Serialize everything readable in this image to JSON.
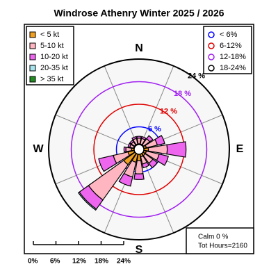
{
  "chart_data": {
    "type": "windrose",
    "title": "Windrose  Athenry Winter 2025 / 2026",
    "categories": [
      "N",
      null,
      null,
      null,
      "E",
      null,
      null,
      null,
      "S",
      null,
      null,
      null,
      "W",
      null,
      null,
      null
    ],
    "series": [
      {
        "name": "< 5  kt",
        "color": "#f0a020",
        "values": [
          1.5,
          1.5,
          1.5,
          2,
          2.5,
          2,
          2,
          2,
          3,
          3.5,
          5,
          3,
          2,
          1.5,
          1.5,
          1.5
        ]
      },
      {
        "name": "5-10 kt",
        "color": "#ffb6c1",
        "values": [
          1.5,
          1.5,
          2,
          3,
          5,
          3.5,
          2.5,
          2,
          3.5,
          4,
          11.5,
          4,
          1.5,
          1,
          1,
          1.5
        ]
      },
      {
        "name": "10-20 kt",
        "color": "#ee66ee",
        "values": [
          0.5,
          0.5,
          1,
          2,
          5,
          2.5,
          1.5,
          1,
          1.5,
          2.5,
          3,
          4,
          0.5,
          0.5,
          0.5,
          0.5
        ]
      },
      {
        "name": "20-35 kt",
        "color": "#a8e4ec",
        "values": [
          0,
          0,
          0,
          0,
          0,
          0,
          0,
          0,
          0,
          0,
          0.3,
          0,
          0,
          0,
          0,
          0
        ]
      },
      {
        "name": "> 35 kt",
        "color": "#228b22",
        "values": [
          0,
          0,
          0,
          0,
          0,
          0,
          0,
          0,
          0,
          0,
          0,
          0,
          0,
          0,
          0,
          0
        ]
      }
    ],
    "rlim": [
      0,
      24
    ],
    "rings": [
      {
        "value": 6,
        "label": "6 %",
        "name": "< 6%",
        "color": "#0000ff"
      },
      {
        "value": 12,
        "label": "12 %",
        "name": "6-12%",
        "color": "#e00000"
      },
      {
        "value": 18,
        "label": "18 %",
        "name": "12-18%",
        "color": "#a020f0"
      },
      {
        "value": 24,
        "label": "24 %",
        "name": "18-24%",
        "color": "#000000"
      }
    ],
    "scale_ticks": [
      {
        "value": 0,
        "label": "0%"
      },
      {
        "value": 6,
        "label": "6%"
      },
      {
        "value": 12,
        "label": "12%"
      },
      {
        "value": 18,
        "label": "18%"
      },
      {
        "value": 24,
        "label": "24%"
      }
    ],
    "annotations": [
      "Calm 0 %",
      "Tot Hours=2160"
    ]
  }
}
